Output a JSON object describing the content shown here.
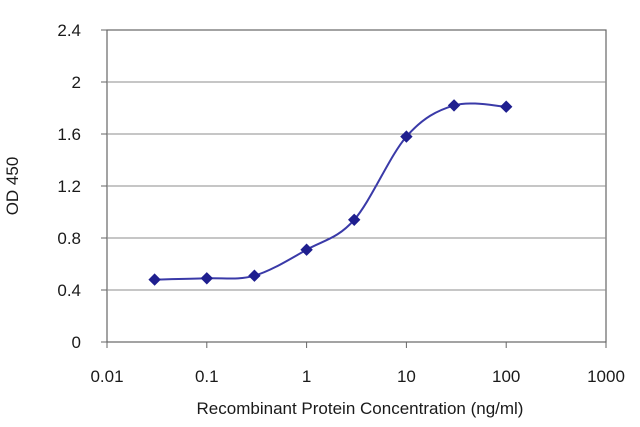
{
  "chart_data": {
    "type": "line",
    "title": "",
    "xlabel": "Recombinant Protein Concentration (ng/ml)",
    "ylabel": "OD 450",
    "xscale": "log",
    "xlim": [
      0.01,
      1000
    ],
    "ylim": [
      0,
      2.4
    ],
    "xticks": [
      "0.01",
      "0.1",
      "1",
      "10",
      "100",
      "1000"
    ],
    "yticks": [
      "0",
      "0.4",
      "0.8",
      "1.2",
      "1.6",
      "2",
      "2.4"
    ],
    "grid": "horizontal",
    "legend": "none",
    "series": [
      {
        "color": "#1f1f8f",
        "marker": "diamond",
        "x": [
          0.03,
          0.1,
          0.3,
          1,
          3,
          10,
          30,
          100
        ],
        "y": [
          0.48,
          0.49,
          0.51,
          0.71,
          0.94,
          1.58,
          1.82,
          1.81
        ]
      }
    ]
  }
}
